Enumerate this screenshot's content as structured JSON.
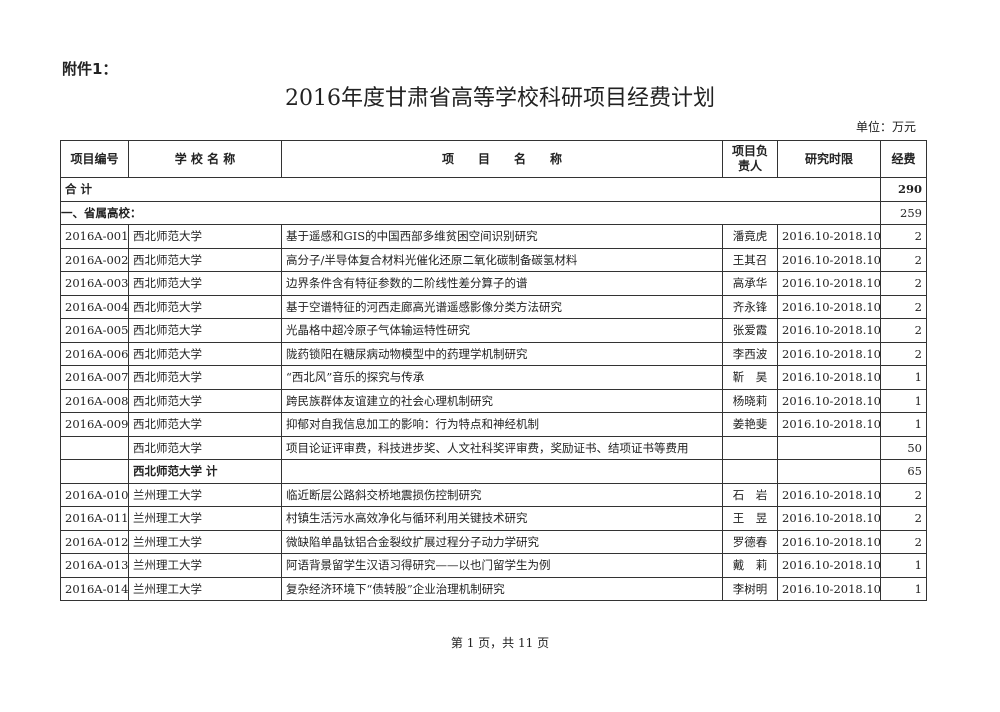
{
  "attachment_label": "附件1：",
  "title": "2016年度甘肃省高等学校科研项目经费计划",
  "unit": "单位：万元",
  "headers": {
    "id": "项目编号",
    "school": "学 校 名 称",
    "project": "项　　目　　名　　称",
    "leader": "项目负责人",
    "period": "研究时限",
    "funding": "经费"
  },
  "total_row": {
    "label": "合 计",
    "funding": "290"
  },
  "section_row": {
    "label": "一、省属高校：",
    "funding": "259"
  },
  "rows": [
    {
      "id": "2016A-001",
      "school": "西北师范大学",
      "project": "基于遥感和GIS的中国西部多维贫困空间识别研究",
      "leader": "潘竟虎",
      "period": "2016.10-2018.10",
      "funding": "2"
    },
    {
      "id": "2016A-002",
      "school": "西北师范大学",
      "project": "高分子/半导体复合材料光催化还原二氧化碳制备碳氢材料",
      "leader": "王其召",
      "period": "2016.10-2018.10",
      "funding": "2"
    },
    {
      "id": "2016A-003",
      "school": "西北师范大学",
      "project": "边界条件含有特征参数的二阶线性差分算子的谱",
      "leader": "高承华",
      "period": "2016.10-2018.10",
      "funding": "2"
    },
    {
      "id": "2016A-004",
      "school": "西北师范大学",
      "project": "基于空谱特征的河西走廊高光谱遥感影像分类方法研究",
      "leader": "齐永锋",
      "period": "2016.10-2018.10",
      "funding": "2"
    },
    {
      "id": "2016A-005",
      "school": "西北师范大学",
      "project": "光晶格中超冷原子气体输运特性研究",
      "leader": "张爱霞",
      "period": "2016.10-2018.10",
      "funding": "2"
    },
    {
      "id": "2016A-006",
      "school": "西北师范大学",
      "project": "陇药锁阳在糖尿病动物模型中的药理学机制研究",
      "leader": "李西波",
      "period": "2016.10-2018.10",
      "funding": "2"
    },
    {
      "id": "2016A-007",
      "school": "西北师范大学",
      "project": "“西北风”音乐的探究与传承",
      "leader": "靳　昊",
      "period": "2016.10-2018.10",
      "funding": "1"
    },
    {
      "id": "2016A-008",
      "school": "西北师范大学",
      "project": "跨民族群体友谊建立的社会心理机制研究",
      "leader": "杨晓莉",
      "period": "2016.10-2018.10",
      "funding": "1"
    },
    {
      "id": "2016A-009",
      "school": "西北师范大学",
      "project": "抑郁对自我信息加工的影响：行为特点和神经机制",
      "leader": "姜艳斐",
      "period": "2016.10-2018.10",
      "funding": "1"
    },
    {
      "id": "",
      "school": "西北师范大学",
      "project": "项目论证评审费，科技进步奖、人文社科奖评审费，奖励证书、结项证书等费用",
      "leader": "",
      "period": "",
      "funding": "50"
    },
    {
      "id": "",
      "school": "西北师范大学 计",
      "project": "",
      "leader": "",
      "period": "",
      "funding": "65",
      "subtotal": true
    },
    {
      "id": "2016A-010",
      "school": "兰州理工大学",
      "project": "临近断层公路斜交桥地震损伤控制研究",
      "leader": "石　岩",
      "period": "2016.10-2018.10",
      "funding": "2"
    },
    {
      "id": "2016A-011",
      "school": "兰州理工大学",
      "project": "村镇生活污水高效净化与循环利用关键技术研究",
      "leader": "王　昱",
      "period": "2016.10-2018.10",
      "funding": "2"
    },
    {
      "id": "2016A-012",
      "school": "兰州理工大学",
      "project": "微缺陷单晶钛铝合金裂纹扩展过程分子动力学研究",
      "leader": "罗德春",
      "period": "2016.10-2018.10",
      "funding": "2"
    },
    {
      "id": "2016A-013",
      "school": "兰州理工大学",
      "project": "阿语背景留学生汉语习得研究——以也门留学生为例",
      "leader": "戴　莉",
      "period": "2016.10-2018.10",
      "funding": "1"
    },
    {
      "id": "2016A-014",
      "school": "兰州理工大学",
      "project": "复杂经济环境下“债转股”企业治理机制研究",
      "leader": "李树明",
      "period": "2016.10-2018.10",
      "funding": "1"
    }
  ],
  "footer": "第 1 页，共 11 页"
}
